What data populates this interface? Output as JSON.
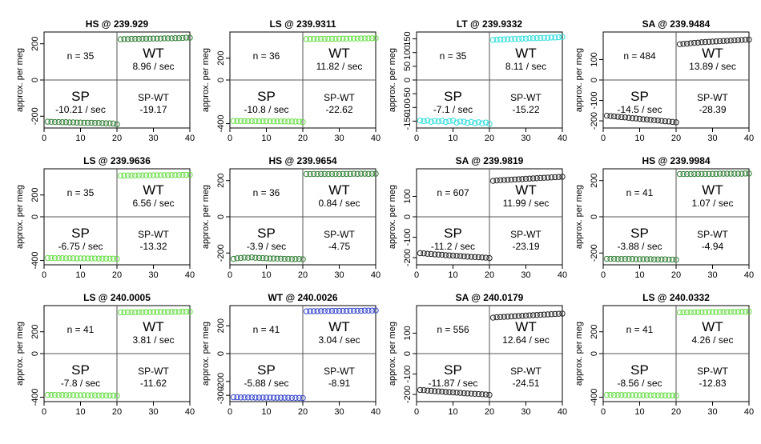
{
  "figure": {
    "ylabel": "approx. per meg",
    "xlim": [
      0,
      40
    ],
    "x_ticks": [
      0,
      10,
      20,
      30,
      40
    ],
    "split_x": 20
  },
  "chart_data": [
    {
      "type": "scatter",
      "title": "HS @ 239.929",
      "n_label": "n = 35",
      "wt_label": "WT",
      "wt_rate": "8.96 / sec",
      "sp_label": "SP",
      "sp_rate": "-10.21 / sec",
      "spwt_label": "SP-WT",
      "spwt_value": "-19.17",
      "color": "#2e7d32",
      "ylim": [
        -265,
        265
      ],
      "y_ticks": [
        -200,
        0,
        200
      ],
      "sp": [
        -230,
        -231,
        -232,
        -232,
        -233,
        -233,
        -234,
        -234,
        -235,
        -235,
        -236,
        -236,
        -236,
        -237,
        -237,
        -238,
        -239,
        -239,
        -240,
        -245
      ],
      "wt": [
        225,
        226,
        226,
        227,
        227,
        227,
        228,
        228,
        228,
        229,
        229,
        229,
        230,
        230,
        230,
        231,
        231,
        232,
        234,
        233
      ]
    },
    {
      "type": "scatter",
      "title": "LS @ 239.9311",
      "n_label": "n = 36",
      "wt_label": "WT",
      "wt_rate": "11.82 / sec",
      "sp_label": "SP",
      "sp_rate": "-10.8 / sec",
      "spwt_label": "SP-WT",
      "spwt_value": "-22.62",
      "color": "#66dd44",
      "ylim": [
        -440,
        440
      ],
      "y_ticks": [
        -400,
        0,
        200
      ],
      "sp": [
        -375,
        -376,
        -376,
        -377,
        -377,
        -377,
        -378,
        -378,
        -378,
        -378,
        -379,
        -379,
        -379,
        -379,
        -380,
        -380,
        -380,
        -381,
        -381,
        -385
      ],
      "wt": [
        375,
        376,
        376,
        377,
        377,
        377,
        378,
        378,
        378,
        379,
        379,
        379,
        380,
        380,
        380,
        381,
        381,
        382,
        383,
        384
      ]
    },
    {
      "type": "scatter",
      "title": "LT @ 239.9332",
      "n_label": "n = 35",
      "wt_label": "WT",
      "wt_rate": "8.11 / sec",
      "sp_label": "SP",
      "sp_rate": "-7.1 / sec",
      "spwt_label": "SP-WT",
      "spwt_value": "-15.22",
      "color": "#33dddd",
      "ylim": [
        -175,
        175
      ],
      "y_ticks": [
        -150,
        -100,
        -50,
        0,
        50,
        100,
        150
      ],
      "sp": [
        -148,
        -150,
        -148,
        -152,
        -149,
        -151,
        -149,
        -153,
        -150,
        -148,
        -155,
        -151,
        -152,
        -156,
        -153,
        -157,
        -154,
        -158,
        -155,
        -160
      ],
      "wt": [
        146,
        147,
        148,
        148,
        149,
        149,
        150,
        150,
        151,
        151,
        152,
        152,
        153,
        153,
        154,
        154,
        155,
        155,
        156,
        157
      ]
    },
    {
      "type": "scatter",
      "title": "SA @ 239.9484",
      "n_label": "n = 484",
      "wt_label": "WT",
      "wt_rate": "13.89 / sec",
      "sp_label": "SP",
      "sp_rate": "-14.5 / sec",
      "spwt_label": "SP-WT",
      "spwt_value": "-28.39",
      "color": "#222222",
      "ylim": [
        -235,
        235
      ],
      "y_ticks": [
        -200,
        -100,
        0,
        100
      ],
      "sp": [
        -175,
        -177,
        -178,
        -180,
        -182,
        -183,
        -185,
        -187,
        -188,
        -190,
        -192,
        -193,
        -195,
        -197,
        -198,
        -200,
        -202,
        -203,
        -205,
        -207
      ],
      "wt": [
        175,
        177,
        178,
        180,
        182,
        183,
        185,
        186,
        187,
        188,
        189,
        190,
        191,
        192,
        193,
        194,
        195,
        196,
        197,
        198
      ]
    },
    {
      "type": "scatter",
      "title": "LS @ 239.9636",
      "n_label": "n = 35",
      "wt_label": "WT",
      "wt_rate": "6.56 / sec",
      "sp_label": "SP",
      "sp_rate": "-6.75 / sec",
      "spwt_label": "SP-WT",
      "spwt_value": "-13.32",
      "color": "#66dd44",
      "ylim": [
        -440,
        440
      ],
      "y_ticks": [
        -400,
        0,
        200
      ],
      "sp": [
        -378,
        -378,
        -379,
        -379,
        -379,
        -380,
        -380,
        -380,
        -381,
        -381,
        -381,
        -382,
        -382,
        -382,
        -383,
        -383,
        -383,
        -384,
        -384,
        -385
      ],
      "wt": [
        378,
        378,
        379,
        379,
        379,
        380,
        380,
        380,
        381,
        381,
        381,
        382,
        382,
        382,
        383,
        383,
        383,
        384,
        384,
        385
      ]
    },
    {
      "type": "scatter",
      "title": "HS @ 239.9654",
      "n_label": "n = 36",
      "wt_label": "WT",
      "wt_rate": "0.84 / sec",
      "sp_label": "SP",
      "sp_rate": "-3.9 / sec",
      "spwt_label": "SP-WT",
      "spwt_value": "-4.75",
      "color": "#2e7d32",
      "ylim": [
        -265,
        265
      ],
      "y_ticks": [
        -200,
        0,
        200
      ],
      "sp": [
        -232,
        -229,
        -227,
        -225,
        -226,
        -224,
        -226,
        -227,
        -228,
        -229,
        -230,
        -230,
        -231,
        -231,
        -232,
        -232,
        -233,
        -233,
        -233,
        -234
      ],
      "wt": [
        236,
        236,
        237,
        236,
        237,
        237,
        236,
        237,
        237,
        236,
        237,
        237,
        237,
        238,
        237,
        238,
        238,
        237,
        238,
        238
      ]
    },
    {
      "type": "scatter",
      "title": "SA @ 239.9819",
      "n_label": "n = 607",
      "wt_label": "WT",
      "wt_rate": "11.99 / sec",
      "sp_label": "SP",
      "sp_rate": "-11.2 / sec",
      "spwt_label": "SP-WT",
      "spwt_value": "-23.19",
      "color": "#222222",
      "ylim": [
        -235,
        235
      ],
      "y_ticks": [
        -200,
        -100,
        0,
        100
      ],
      "sp": [
        -178,
        -179,
        -181,
        -182,
        -184,
        -185,
        -186,
        -188,
        -189,
        -190,
        -191,
        -192,
        -194,
        -195,
        -196,
        -197,
        -198,
        -199,
        -200,
        -202
      ],
      "wt": [
        176,
        178,
        179,
        180,
        181,
        182,
        183,
        184,
        185,
        186,
        187,
        188,
        189,
        190,
        191,
        192,
        193,
        194,
        195,
        196
      ]
    },
    {
      "type": "scatter",
      "title": "HS @ 239.9984",
      "n_label": "n = 41",
      "wt_label": "WT",
      "wt_rate": "1.07 / sec",
      "sp_label": "SP",
      "sp_rate": "-3.88 / sec",
      "spwt_label": "SP-WT",
      "spwt_value": "-4.94",
      "color": "#2e7d32",
      "ylim": [
        -265,
        265
      ],
      "y_ticks": [
        -200,
        0,
        200
      ],
      "sp": [
        -232,
        -232,
        -232,
        -233,
        -233,
        -233,
        -233,
        -233,
        -234,
        -234,
        -234,
        -234,
        -234,
        -235,
        -235,
        -235,
        -235,
        -236,
        -236,
        -237
      ],
      "wt": [
        236,
        236,
        236,
        236,
        237,
        237,
        237,
        237,
        237,
        237,
        237,
        238,
        238,
        238,
        238,
        238,
        238,
        238,
        239,
        239
      ]
    },
    {
      "type": "scatter",
      "title": "LS @ 240.0005",
      "n_label": "n = 41",
      "wt_label": "WT",
      "wt_rate": "3.81 / sec",
      "sp_label": "SP",
      "sp_rate": "-7.8 / sec",
      "spwt_label": "SP-WT",
      "spwt_value": "-11.62",
      "color": "#66dd44",
      "ylim": [
        -440,
        440
      ],
      "y_ticks": [
        -400,
        0,
        200
      ],
      "sp": [
        -378,
        -378,
        -379,
        -379,
        -379,
        -380,
        -380,
        -380,
        -381,
        -381,
        -381,
        -382,
        -382,
        -382,
        -383,
        -383,
        -383,
        -384,
        -384,
        -385
      ],
      "wt": [
        378,
        378,
        379,
        379,
        379,
        380,
        380,
        380,
        381,
        381,
        381,
        382,
        382,
        382,
        383,
        383,
        383,
        384,
        384,
        385
      ]
    },
    {
      "type": "scatter",
      "title": "WT @ 240.0026",
      "n_label": "n = 41",
      "wt_label": "WT",
      "wt_rate": "3.04 / sec",
      "sp_label": "SP",
      "sp_rate": "-5.88 / sec",
      "spwt_label": "SP-WT",
      "spwt_value": "-8.91",
      "color": "#3344cc",
      "ylim": [
        -345,
        345
      ],
      "y_ticks": [
        -300,
        -200,
        0,
        200
      ],
      "sp": [
        -314,
        -314,
        -315,
        -315,
        -315,
        -315,
        -316,
        -316,
        -316,
        -316,
        -316,
        -317,
        -317,
        -317,
        -317,
        -317,
        -318,
        -318,
        -318,
        -319
      ],
      "wt": [
        304,
        305,
        305,
        305,
        306,
        306,
        306,
        307,
        307,
        307,
        307,
        307,
        308,
        308,
        308,
        308,
        309,
        309,
        309,
        310
      ]
    },
    {
      "type": "scatter",
      "title": "SA @ 240.0179",
      "n_label": "n = 556",
      "wt_label": "WT",
      "wt_rate": "12.64 / sec",
      "sp_label": "SP",
      "sp_rate": "-11.87 / sec",
      "spwt_label": "SP-WT",
      "spwt_value": "-24.51",
      "color": "#222222",
      "ylim": [
        -235,
        235
      ],
      "y_ticks": [
        -200,
        -100,
        0,
        100
      ],
      "sp": [
        -178,
        -179,
        -181,
        -182,
        -184,
        -185,
        -186,
        -188,
        -189,
        -190,
        -191,
        -192,
        -194,
        -195,
        -196,
        -197,
        -198,
        -199,
        -200,
        -202
      ],
      "wt": [
        176,
        178,
        179,
        180,
        181,
        182,
        183,
        184,
        185,
        186,
        187,
        188,
        189,
        190,
        191,
        192,
        193,
        194,
        195,
        196
      ]
    },
    {
      "type": "scatter",
      "title": "LS @ 240.0332",
      "n_label": "n = 41",
      "wt_label": "WT",
      "wt_rate": "4.26 / sec",
      "sp_label": "SP",
      "sp_rate": "-8.56 / sec",
      "spwt_label": "SP-WT",
      "spwt_value": "-12.83",
      "color": "#66dd44",
      "ylim": [
        -440,
        440
      ],
      "y_ticks": [
        -400,
        0,
        200
      ],
      "sp": [
        -378,
        -378,
        -379,
        -379,
        -379,
        -380,
        -380,
        -380,
        -381,
        -381,
        -381,
        -382,
        -382,
        -382,
        -383,
        -383,
        -383,
        -384,
        -384,
        -385
      ],
      "wt": [
        378,
        378,
        379,
        379,
        379,
        380,
        380,
        380,
        381,
        381,
        381,
        382,
        382,
        382,
        383,
        383,
        383,
        384,
        384,
        385
      ]
    }
  ]
}
